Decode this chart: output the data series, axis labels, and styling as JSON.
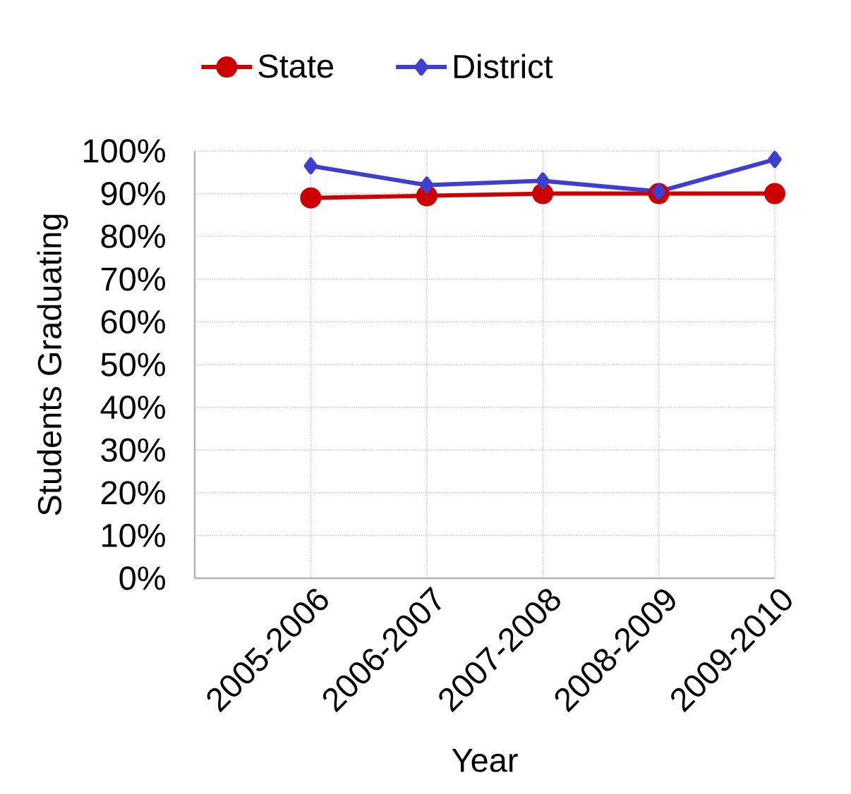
{
  "chart_data": {
    "type": "line",
    "categories": [
      "2005-2006",
      "2006-2007",
      "2007-2008",
      "2008-2009",
      "2009-2010"
    ],
    "xlabel": "Year",
    "ylabel": "Students Graduating",
    "ylim": [
      0,
      100
    ],
    "yticks": [
      {
        "value": 0,
        "label": "0%"
      },
      {
        "value": 10,
        "label": "10%"
      },
      {
        "value": 20,
        "label": "20%"
      },
      {
        "value": 30,
        "label": "30%"
      },
      {
        "value": 40,
        "label": "40%"
      },
      {
        "value": 50,
        "label": "50%"
      },
      {
        "value": 60,
        "label": "60%"
      },
      {
        "value": 70,
        "label": "70%"
      },
      {
        "value": 80,
        "label": "80%"
      },
      {
        "value": 90,
        "label": "90%"
      },
      {
        "value": 100,
        "label": "100%"
      }
    ],
    "grid": true,
    "legend": "top",
    "series": [
      {
        "name": "State",
        "color": "#cc0000",
        "marker": "circle",
        "values": [
          89,
          89.5,
          90,
          90,
          90
        ]
      },
      {
        "name": "District",
        "color": "#3f3fcf",
        "marker": "diamond",
        "values": [
          96.5,
          92,
          93,
          90.5,
          98
        ]
      }
    ]
  }
}
